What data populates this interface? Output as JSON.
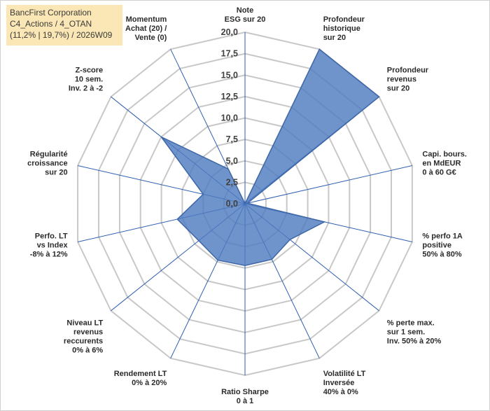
{
  "header": {
    "line1": "BancFirst Corporation",
    "line2": "C4_Actions / 4_OTAN",
    "line3": "(11,2% | 19,7%) / 2026W09"
  },
  "colors": {
    "fill": "#4f7bbf",
    "stroke": "#3d67a8",
    "spoke": "#2f5fb0",
    "grid": "#c8c8c8"
  },
  "chart_data": {
    "type": "radar",
    "title": "",
    "rmin": 0,
    "rmax": 20,
    "ticks": [
      "0,0",
      "2,5",
      "5,0",
      "7,5",
      "10,0",
      "12,5",
      "15,0",
      "17,5",
      "20,0"
    ],
    "grid": true,
    "axes": [
      {
        "label": [
          "Note",
          "ESG sur 20"
        ],
        "value": 0
      },
      {
        "label": [
          "Profondeur",
          "historique",
          "sur 20"
        ],
        "value": 20
      },
      {
        "label": [
          "Profondeur",
          "revenus",
          "sur 20"
        ],
        "value": 20
      },
      {
        "label": [
          "Capi. bours.",
          "en MdEUR",
          "0 à 60 G€"
        ],
        "value": 0.3
      },
      {
        "label": [
          "% perfo 1A",
          "positive",
          "50% à 80%"
        ],
        "value": 9.5
      },
      {
        "label": [
          "% perte max.",
          "sur 1 sem.",
          "Inv. 50% à 20%"
        ],
        "value": 6.7
      },
      {
        "label": [
          "Volatilité LT",
          "Inversée",
          "40% à 0%"
        ],
        "value": 7.2
      },
      {
        "label": [
          "Ratio Sharpe",
          "0 à 1"
        ],
        "value": 7.2
      },
      {
        "label": [
          "Rendement LT",
          "0% à 20%"
        ],
        "value": 7.3
      },
      {
        "label": [
          "Niveau LT",
          "revenus",
          "reccurents",
          "0% à 6%"
        ],
        "value": 6.9
      },
      {
        "label": [
          "Perfo. LT",
          "vs Index",
          "-8% à 12%"
        ],
        "value": 8.1
      },
      {
        "label": [
          "Régularité",
          "croissance",
          "sur 20"
        ],
        "value": 5.0
      },
      {
        "label": [
          "Z-score",
          "10 sem.",
          "Inv. 2 à -2"
        ],
        "value": 12.5
      },
      {
        "label": [
          "Momentum",
          "Achat (20) /",
          "Vente (0)"
        ],
        "value": 4.5
      }
    ]
  }
}
